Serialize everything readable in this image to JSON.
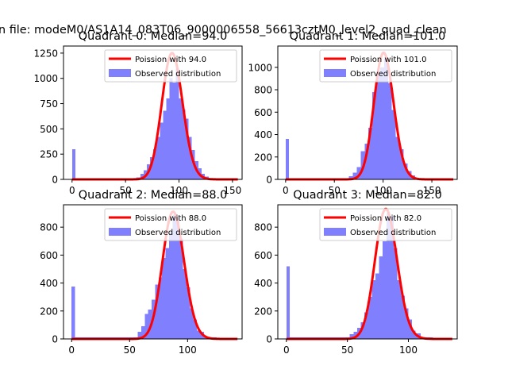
{
  "figure": {
    "suptitle": "n file: modeM0/AS1A14_083T06_9000006558_56613cztM0_level2_quad_clean"
  },
  "colors": {
    "hist": "#8080ff",
    "poisson": "#ff0000",
    "axes": "#000000"
  },
  "chart_data": [
    {
      "type": "bar",
      "title": "Quadrant 0: Median=94.0",
      "median": 94.0,
      "xlim": [
        -8,
        159
      ],
      "ylim": [
        0,
        1320
      ],
      "xticks": [
        0,
        50,
        100,
        150
      ],
      "yticks": [
        0,
        250,
        500,
        750,
        1000,
        1250
      ],
      "legend": [
        "Poission with 94.0",
        "Observed distribution"
      ],
      "poisson_peak": 1250,
      "hist_bins": [
        [
          0,
          3.2,
          300
        ],
        [
          3.2,
          60,
          8
        ],
        [
          60,
          64,
          20
        ],
        [
          64,
          67,
          55
        ],
        [
          67,
          70,
          90
        ],
        [
          70,
          73,
          150
        ],
        [
          73,
          76,
          220
        ],
        [
          76,
          79,
          300
        ],
        [
          79,
          82,
          420
        ],
        [
          82,
          85,
          560
        ],
        [
          85,
          88,
          680
        ],
        [
          88,
          91,
          800
        ],
        [
          91,
          94,
          1000
        ],
        [
          94,
          97,
          960
        ],
        [
          97,
          100,
          1100
        ],
        [
          100,
          103,
          800
        ],
        [
          103,
          106,
          690
        ],
        [
          106,
          109,
          600
        ],
        [
          109,
          112,
          420
        ],
        [
          112,
          115,
          290
        ],
        [
          115,
          118,
          180
        ],
        [
          118,
          121,
          110
        ],
        [
          121,
          124,
          55
        ],
        [
          124,
          128,
          28
        ],
        [
          128,
          140,
          12
        ]
      ]
    },
    {
      "type": "bar",
      "title": "Quadrant 1: Median=101.0",
      "median": 101.0,
      "xlim": [
        -8,
        176
      ],
      "ylim": [
        0,
        1190
      ],
      "xticks": [
        0,
        50,
        100,
        150
      ],
      "yticks": [
        0,
        200,
        400,
        600,
        800,
        1000
      ],
      "legend": [
        "Poission with 101.0",
        "Observed distribution"
      ],
      "poisson_peak": 1130,
      "hist_bins": [
        [
          0,
          3.5,
          360
        ],
        [
          3.5,
          65,
          8
        ],
        [
          65,
          69,
          30
        ],
        [
          69,
          73,
          60
        ],
        [
          73,
          77,
          110
        ],
        [
          77,
          81,
          250
        ],
        [
          81,
          85,
          320
        ],
        [
          85,
          89,
          460
        ],
        [
          89,
          93,
          780
        ],
        [
          93,
          97,
          960
        ],
        [
          97,
          101,
          1000
        ],
        [
          101,
          105,
          1080
        ],
        [
          105,
          109,
          860
        ],
        [
          109,
          113,
          620
        ],
        [
          113,
          117,
          380
        ],
        [
          117,
          121,
          270
        ],
        [
          121,
          125,
          140
        ],
        [
          125,
          129,
          75
        ],
        [
          129,
          133,
          35
        ],
        [
          133,
          145,
          12
        ]
      ]
    },
    {
      "type": "bar",
      "title": "Quadrant 2: Median=88.0",
      "median": 88.0,
      "xlim": [
        -7,
        147
      ],
      "ylim": [
        0,
        960
      ],
      "xticks": [
        0,
        50,
        100
      ],
      "yticks": [
        0,
        200,
        400,
        600,
        800
      ],
      "legend": [
        "Poission with 88.0",
        "Observed distribution"
      ],
      "poisson_peak": 910,
      "hist_bins": [
        [
          0,
          3,
          375
        ],
        [
          3,
          57,
          10
        ],
        [
          57,
          60,
          50
        ],
        [
          60,
          63,
          90
        ],
        [
          63,
          66,
          180
        ],
        [
          66,
          69,
          210
        ],
        [
          69,
          72,
          280
        ],
        [
          72,
          75,
          390
        ],
        [
          75,
          78,
          440
        ],
        [
          78,
          81,
          580
        ],
        [
          81,
          84,
          650
        ],
        [
          84,
          87,
          760
        ],
        [
          87,
          90,
          890
        ],
        [
          90,
          93,
          870
        ],
        [
          93,
          96,
          720
        ],
        [
          96,
          99,
          500
        ],
        [
          99,
          102,
          370
        ],
        [
          102,
          105,
          220
        ],
        [
          105,
          108,
          140
        ],
        [
          108,
          111,
          60
        ],
        [
          111,
          114,
          50
        ],
        [
          114,
          125,
          10
        ]
      ]
    },
    {
      "type": "bar",
      "title": "Quadrant 3: Median=82.0",
      "median": 82.0,
      "xlim": [
        -7,
        140
      ],
      "ylim": [
        0,
        960
      ],
      "xticks": [
        0,
        50,
        100
      ],
      "yticks": [
        0,
        200,
        400,
        600,
        800
      ],
      "legend": [
        "Poission with 82.0",
        "Observed distribution"
      ],
      "poisson_peak": 930,
      "hist_bins": [
        [
          0,
          2.8,
          520
        ],
        [
          2.8,
          52,
          12
        ],
        [
          52,
          55,
          35
        ],
        [
          55,
          58,
          50
        ],
        [
          58,
          61,
          80
        ],
        [
          61,
          64,
          120
        ],
        [
          64,
          67,
          190
        ],
        [
          67,
          70,
          300
        ],
        [
          70,
          73,
          420
        ],
        [
          73,
          76,
          470
        ],
        [
          76,
          79,
          590
        ],
        [
          79,
          82,
          700
        ],
        [
          82,
          85,
          900
        ],
        [
          85,
          88,
          880
        ],
        [
          88,
          91,
          650
        ],
        [
          91,
          94,
          420
        ],
        [
          94,
          97,
          310
        ],
        [
          97,
          100,
          220
        ],
        [
          100,
          103,
          140
        ],
        [
          103,
          106,
          60
        ],
        [
          106,
          110,
          40
        ],
        [
          110,
          120,
          10
        ]
      ]
    }
  ]
}
